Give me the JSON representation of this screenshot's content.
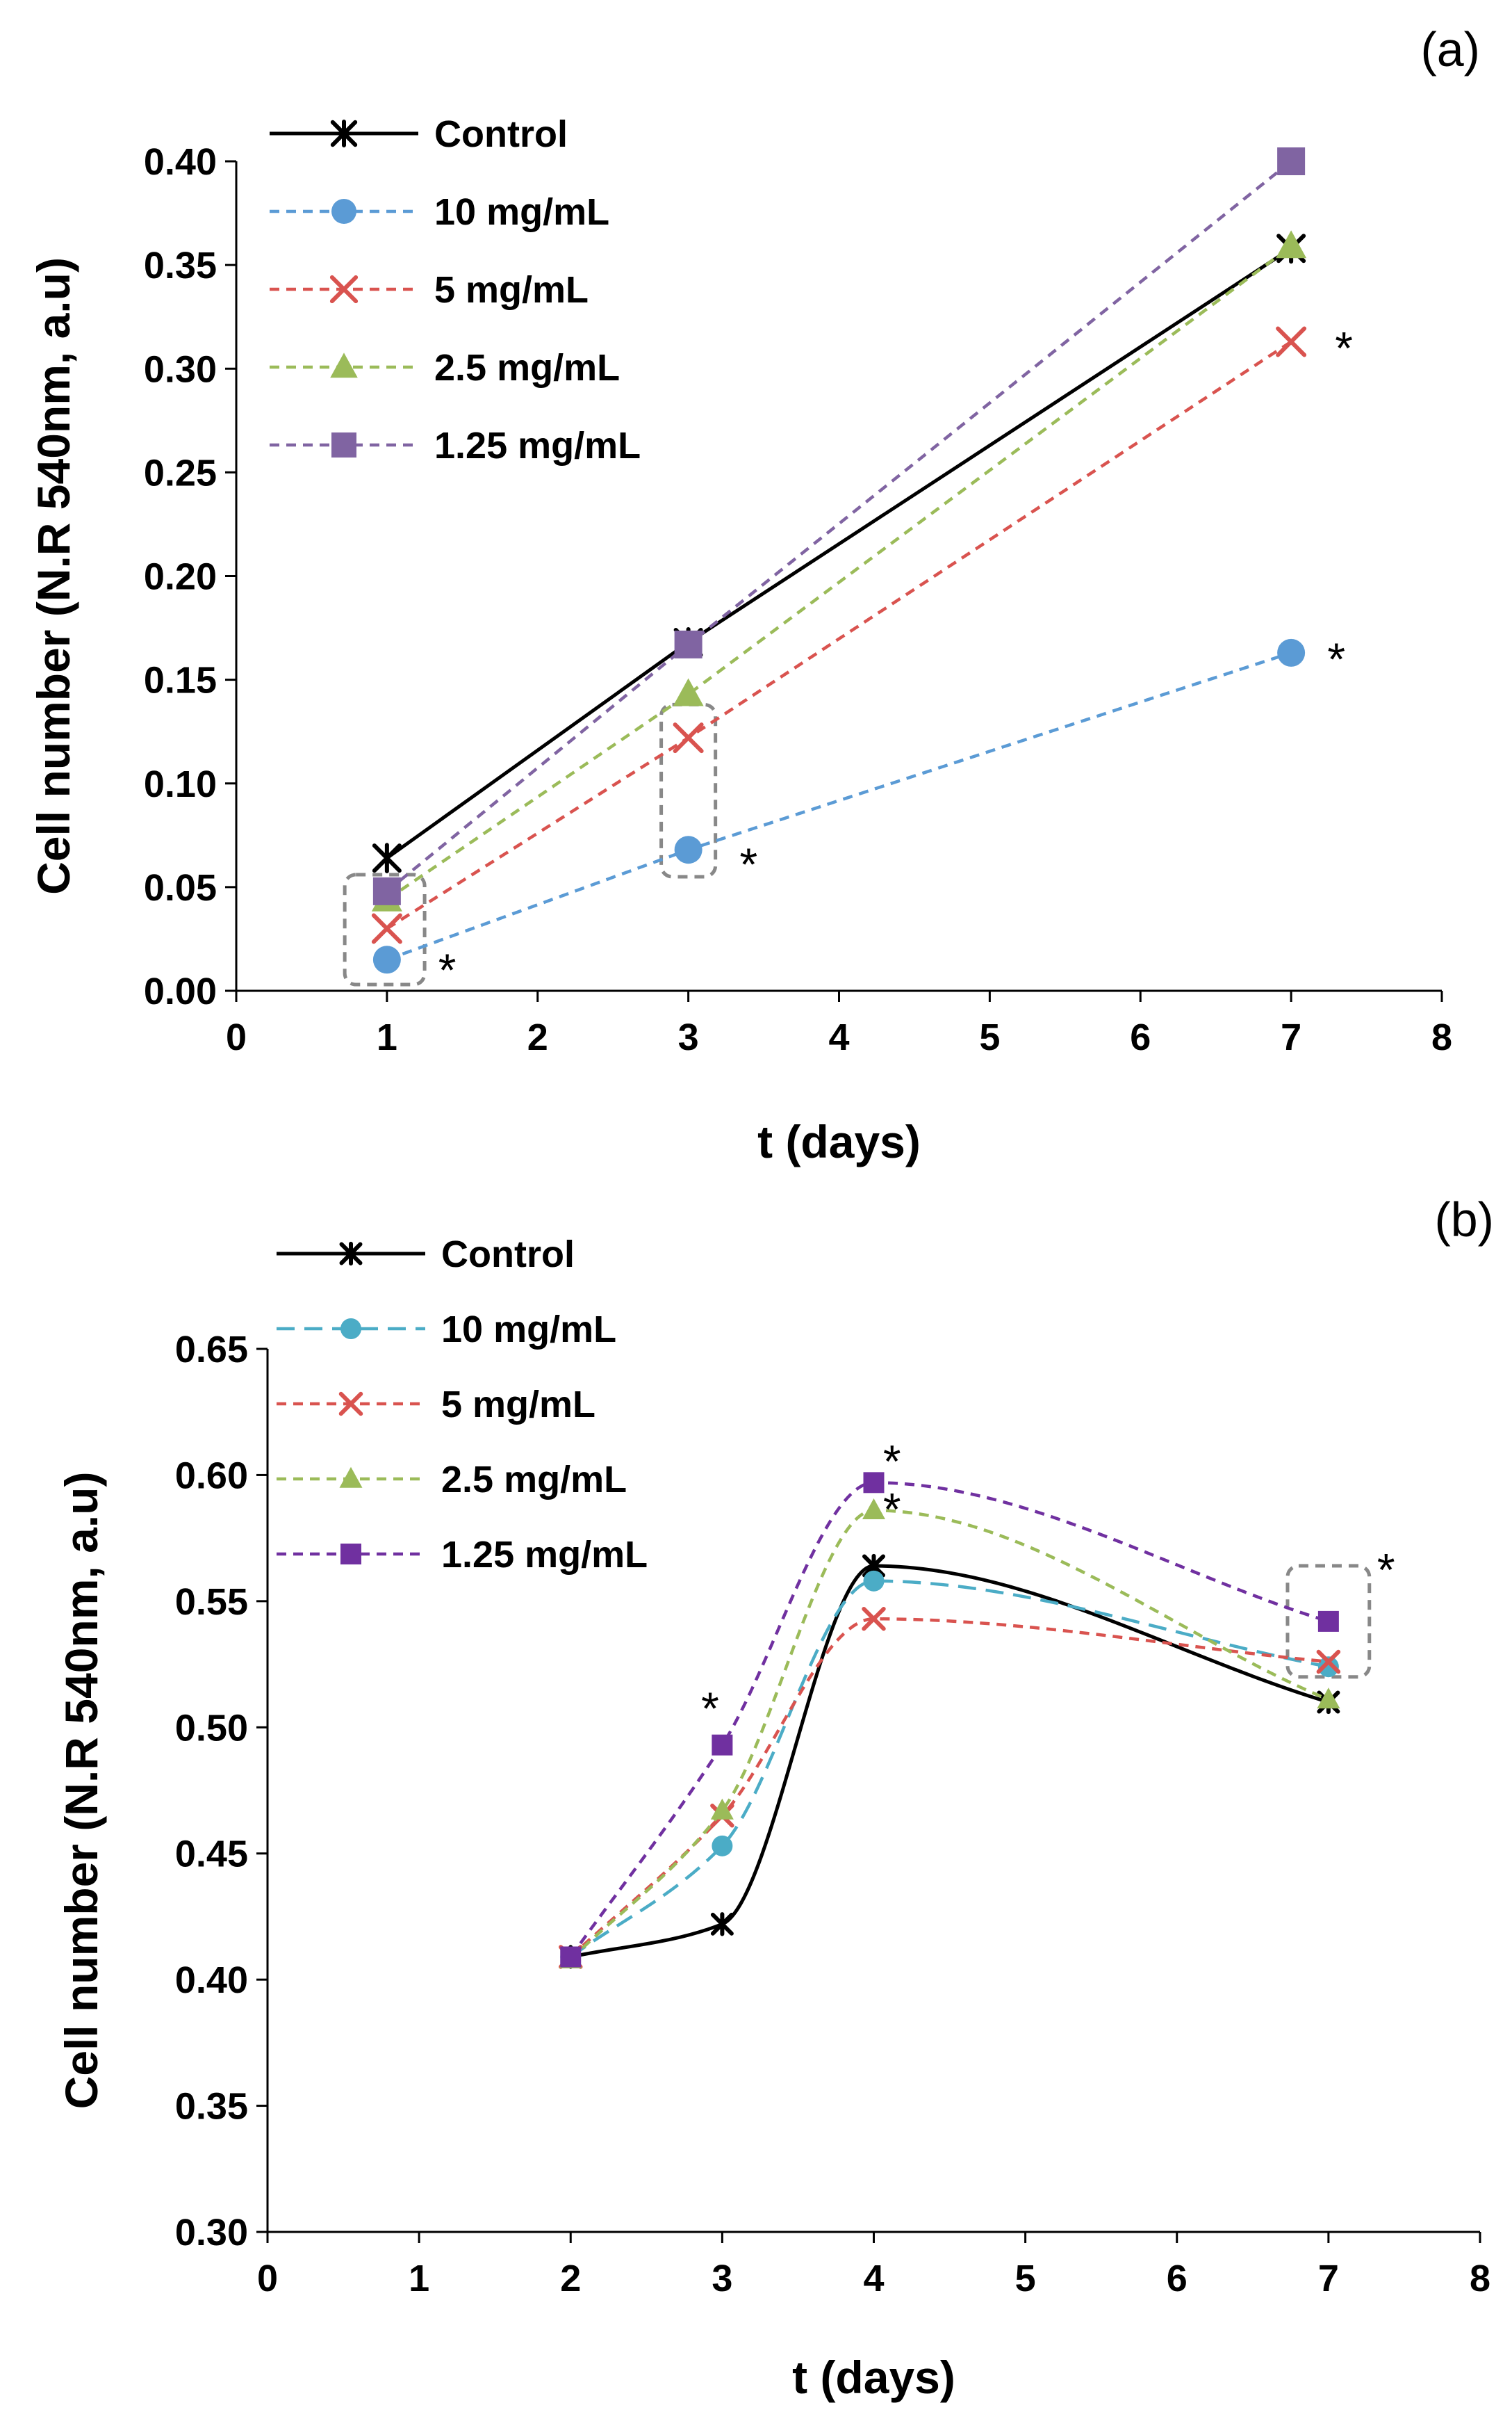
{
  "chart_data": [
    {
      "panel": "(a)",
      "type": "line",
      "xlabel": "t (days)",
      "ylabel": "Cell number (N.R 540nm, a.u)",
      "xlim": [
        0,
        8
      ],
      "ylim": [
        0.0,
        0.4
      ],
      "xticks": [
        "0",
        "1",
        "2",
        "3",
        "4",
        "5",
        "6",
        "7",
        "8"
      ],
      "yticks": [
        "0.00",
        "0.05",
        "0.10",
        "0.15",
        "0.20",
        "0.25",
        "0.30",
        "0.35",
        "0.40"
      ],
      "xtick_values": [
        0,
        1,
        2,
        3,
        4,
        5,
        6,
        7,
        8
      ],
      "ytick_values": [
        0,
        0.05,
        0.1,
        0.15,
        0.2,
        0.25,
        0.3,
        0.35,
        0.4
      ],
      "x": [
        1,
        3,
        7
      ],
      "smooth": false,
      "legend": "top-left",
      "series": [
        {
          "name": "Control",
          "values": [
            0.064,
            0.168,
            0.358
          ],
          "color": "#000000",
          "dash": "solid",
          "marker": "asterisk"
        },
        {
          "name": "10 mg/mL",
          "values": [
            0.015,
            0.068,
            0.163
          ],
          "color": "#5B9BD5",
          "dash": "dashed",
          "marker": "circle"
        },
        {
          "name": "5 mg/mL",
          "values": [
            0.03,
            0.122,
            0.313
          ],
          "color": "#D9534F",
          "dash": "dashed",
          "marker": "x"
        },
        {
          "name": "2.5 mg/mL",
          "values": [
            0.044,
            0.143,
            0.359
          ],
          "color": "#9BBB59",
          "dash": "dashed",
          "marker": "triangle"
        },
        {
          "name": "1.25 mg/mL",
          "values": [
            0.048,
            0.167,
            0.4
          ],
          "color": "#8064A2",
          "dash": "dashed",
          "marker": "square"
        }
      ],
      "annotations": [
        {
          "text": "*",
          "x": 1.4,
          "y": 0.013
        },
        {
          "text": "*",
          "x": 3.4,
          "y": 0.064
        },
        {
          "text": "*",
          "x": 7.35,
          "y": 0.313
        },
        {
          "text": "*",
          "x": 7.3,
          "y": 0.163
        }
      ],
      "highlight_boxes": [
        {
          "x0": 0.72,
          "x1": 1.25,
          "y0": 0.003,
          "y1": 0.056
        },
        {
          "x0": 2.82,
          "x1": 3.18,
          "y0": 0.055,
          "y1": 0.138
        }
      ]
    },
    {
      "panel": "(b)",
      "type": "line",
      "xlabel": "t (days)",
      "ylabel": "Cell number (N.R 540nm, a.u)",
      "xlim": [
        0,
        8
      ],
      "ylim": [
        0.3,
        0.65
      ],
      "xticks": [
        "0",
        "1",
        "2",
        "3",
        "4",
        "5",
        "6",
        "7",
        "8"
      ],
      "yticks": [
        "0.30",
        "0.35",
        "0.40",
        "0.45",
        "0.50",
        "0.55",
        "0.60",
        "0.65"
      ],
      "xtick_values": [
        0,
        1,
        2,
        3,
        4,
        5,
        6,
        7,
        8
      ],
      "ytick_values": [
        0.3,
        0.35,
        0.4,
        0.45,
        0.5,
        0.55,
        0.6,
        0.65
      ],
      "x": [
        2,
        3,
        4,
        7
      ],
      "smooth": true,
      "legend": "top-left",
      "series": [
        {
          "name": "Control",
          "values": [
            0.409,
            0.422,
            0.564,
            0.51
          ],
          "color": "#000000",
          "dash": "solid",
          "marker": "asterisk"
        },
        {
          "name": "10 mg/mL",
          "values": [
            0.409,
            0.453,
            0.558,
            0.524
          ],
          "color": "#4BACC6",
          "dash": "dashed",
          "marker": "circle"
        },
        {
          "name": "5 mg/mL",
          "values": [
            0.409,
            0.465,
            0.543,
            0.526
          ],
          "color": "#D9534F",
          "dash": "dashed",
          "marker": "x"
        },
        {
          "name": "2.5 mg/mL",
          "values": [
            0.408,
            0.467,
            0.586,
            0.511
          ],
          "color": "#9BBB59",
          "dash": "dashed",
          "marker": "triangle"
        },
        {
          "name": "1.25 mg/mL",
          "values": [
            0.409,
            0.493,
            0.597,
            0.542
          ],
          "color": "#7030A0",
          "dash": "dashed",
          "marker": "square"
        }
      ],
      "annotations": [
        {
          "text": "*",
          "x": 2.92,
          "y": 0.51
        },
        {
          "text": "*",
          "x": 4.12,
          "y": 0.608
        },
        {
          "text": "*",
          "x": 4.12,
          "y": 0.589
        },
        {
          "text": "*",
          "x": 7.38,
          "y": 0.565
        }
      ],
      "highlight_boxes": [
        {
          "x0": 6.73,
          "x1": 7.27,
          "y0": 0.52,
          "y1": 0.564
        }
      ]
    }
  ]
}
